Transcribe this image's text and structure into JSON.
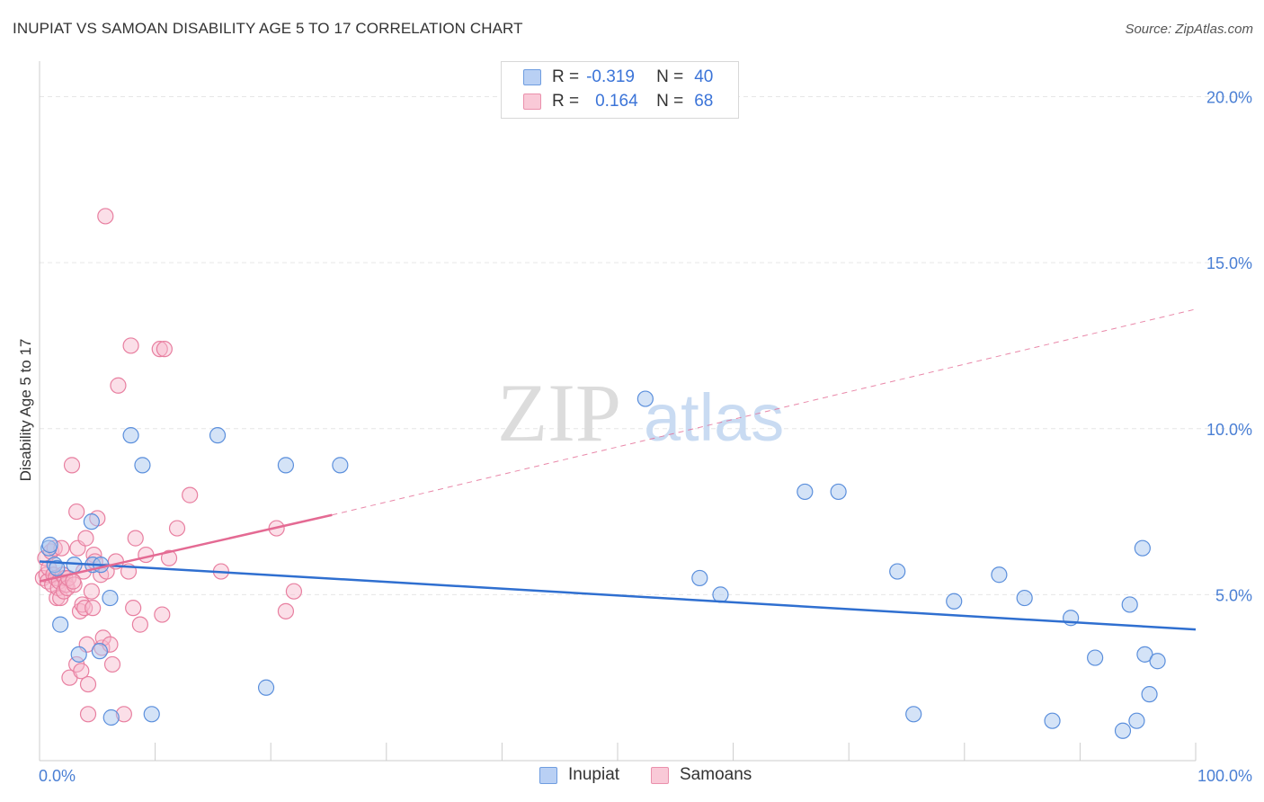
{
  "header": {
    "title": "INUPIAT VS SAMOAN DISABILITY AGE 5 TO 17 CORRELATION CHART",
    "source": "Source: ZipAtlas.com"
  },
  "watermark": {
    "part1": "ZIP",
    "part2": "atlas"
  },
  "legend": {
    "rows": [
      {
        "r_label": "R =",
        "r_value": "-0.319",
        "n_label": "N =",
        "n_value": "40"
      },
      {
        "r_label": "R =",
        "r_value": "0.164",
        "n_label": "N =",
        "n_value": "68"
      }
    ]
  },
  "bottom_legend": {
    "series1": "Inupiat",
    "series2": "Samoans"
  },
  "colors": {
    "inupiat_fill": "#a9c7f0",
    "inupiat_stroke": "#5b8fdc",
    "inupiat_line": "#2f6fd0",
    "samoans_fill": "#f6b8cb",
    "samoans_stroke": "#e87fa0",
    "samoans_line": "#e46a93",
    "grid": "#e6e6e6",
    "axis_text": "#4a7fd4"
  },
  "chart_data": {
    "type": "scatter",
    "title": "INUPIAT VS SAMOAN DISABILITY AGE 5 TO 17 CORRELATION CHART",
    "xlabel": "",
    "ylabel": "Disability Age 5 to 17",
    "xlim": [
      0,
      100
    ],
    "ylim": [
      0,
      20.8
    ],
    "x_tick_labels": [
      "0.0%",
      "100.0%"
    ],
    "y_ticks": [
      5,
      10,
      15,
      20
    ],
    "y_tick_labels": [
      "5.0%",
      "10.0%",
      "15.0%",
      "20.0%"
    ],
    "grid": true,
    "legend_position": "top-center",
    "series": [
      {
        "name": "Inupiat",
        "r": -0.319,
        "n": 40,
        "trend": {
          "x0": 0,
          "y0": 6.0,
          "x1": 100,
          "y1": 3.95
        },
        "points": [
          [
            0.8,
            6.4
          ],
          [
            1.3,
            5.9
          ],
          [
            1.8,
            4.1
          ],
          [
            3.4,
            3.2
          ],
          [
            4.6,
            5.9
          ],
          [
            4.5,
            7.2
          ],
          [
            5.3,
            5.9
          ],
          [
            5.2,
            3.3
          ],
          [
            6.1,
            4.9
          ],
          [
            6.2,
            1.3
          ],
          [
            7.9,
            9.8
          ],
          [
            8.9,
            8.9
          ],
          [
            9.7,
            1.4
          ],
          [
            15.4,
            9.8
          ],
          [
            19.6,
            2.2
          ],
          [
            21.3,
            8.9
          ],
          [
            26.0,
            8.9
          ],
          [
            52.4,
            10.9
          ],
          [
            57.1,
            5.5
          ],
          [
            58.9,
            5.0
          ],
          [
            66.2,
            8.1
          ],
          [
            69.1,
            8.1
          ],
          [
            74.2,
            5.7
          ],
          [
            75.6,
            1.4
          ],
          [
            79.1,
            4.8
          ],
          [
            83.0,
            5.6
          ],
          [
            85.2,
            4.9
          ],
          [
            87.6,
            1.2
          ],
          [
            89.2,
            4.3
          ],
          [
            91.3,
            3.1
          ],
          [
            93.7,
            0.9
          ],
          [
            94.3,
            4.7
          ],
          [
            94.9,
            1.2
          ],
          [
            95.4,
            6.4
          ],
          [
            95.6,
            3.2
          ],
          [
            96.0,
            2.0
          ],
          [
            96.7,
            3.0
          ],
          [
            0.9,
            6.5
          ],
          [
            1.5,
            5.8
          ],
          [
            3.0,
            5.9
          ]
        ]
      },
      {
        "name": "Samoans",
        "r": 0.164,
        "n": 68,
        "trend_solid": {
          "x0": 0,
          "y0": 5.4,
          "x1": 25.3,
          "y1": 7.4
        },
        "trend_dashed": {
          "x0": 25.3,
          "y0": 7.4,
          "x1": 100,
          "y1": 13.6
        },
        "points": [
          [
            0.3,
            5.5
          ],
          [
            0.5,
            6.1
          ],
          [
            0.6,
            5.6
          ],
          [
            0.7,
            5.4
          ],
          [
            0.8,
            5.8
          ],
          [
            1.0,
            6.3
          ],
          [
            1.1,
            5.3
          ],
          [
            1.2,
            5.6
          ],
          [
            1.3,
            6.4
          ],
          [
            1.4,
            5.5
          ],
          [
            1.5,
            4.9
          ],
          [
            1.6,
            5.2
          ],
          [
            1.7,
            5.4
          ],
          [
            1.8,
            4.9
          ],
          [
            2.0,
            5.6
          ],
          [
            2.1,
            5.1
          ],
          [
            2.2,
            5.5
          ],
          [
            2.3,
            5.3
          ],
          [
            2.4,
            5.2
          ],
          [
            2.5,
            5.5
          ],
          [
            2.6,
            2.5
          ],
          [
            2.8,
            8.9
          ],
          [
            3.0,
            5.3
          ],
          [
            3.2,
            2.9
          ],
          [
            3.2,
            7.5
          ],
          [
            3.3,
            6.4
          ],
          [
            3.5,
            4.5
          ],
          [
            3.6,
            2.7
          ],
          [
            3.7,
            4.7
          ],
          [
            3.8,
            5.7
          ],
          [
            3.9,
            4.6
          ],
          [
            4.0,
            6.7
          ],
          [
            4.1,
            3.5
          ],
          [
            4.2,
            1.4
          ],
          [
            4.2,
            2.3
          ],
          [
            4.5,
            5.1
          ],
          [
            4.6,
            4.6
          ],
          [
            4.7,
            6.2
          ],
          [
            4.8,
            6.0
          ],
          [
            5.0,
            7.3
          ],
          [
            5.3,
            5.6
          ],
          [
            5.4,
            3.4
          ],
          [
            5.5,
            3.7
          ],
          [
            5.8,
            5.7
          ],
          [
            6.1,
            3.5
          ],
          [
            6.3,
            2.9
          ],
          [
            6.6,
            6.0
          ],
          [
            6.8,
            11.3
          ],
          [
            7.3,
            1.4
          ],
          [
            7.7,
            5.7
          ],
          [
            7.9,
            12.5
          ],
          [
            8.1,
            4.6
          ],
          [
            8.3,
            6.7
          ],
          [
            8.7,
            4.1
          ],
          [
            9.2,
            6.2
          ],
          [
            10.4,
            12.4
          ],
          [
            10.6,
            4.4
          ],
          [
            10.8,
            12.4
          ],
          [
            11.2,
            6.1
          ],
          [
            13.0,
            8.0
          ],
          [
            11.9,
            7.0
          ],
          [
            15.7,
            5.7
          ],
          [
            20.5,
            7.0
          ],
          [
            21.3,
            4.5
          ],
          [
            22.0,
            5.1
          ],
          [
            5.7,
            16.4
          ],
          [
            1.9,
            6.4
          ],
          [
            2.9,
            5.4
          ]
        ]
      }
    ]
  }
}
